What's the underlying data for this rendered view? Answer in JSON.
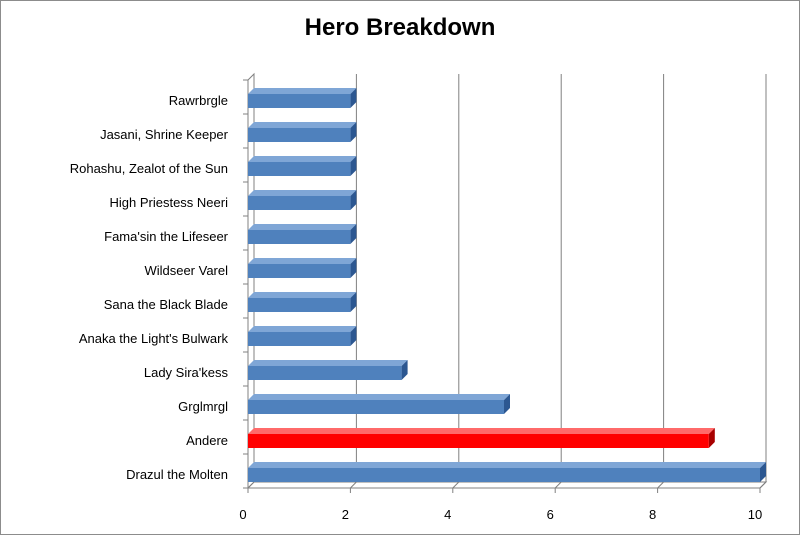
{
  "chart_data": {
    "type": "bar",
    "orientation": "horizontal",
    "title": "Hero Breakdown",
    "xlabel": "",
    "ylabel": "",
    "xlim": [
      0,
      10
    ],
    "xticks": [
      0,
      2,
      4,
      6,
      8,
      10
    ],
    "grid": "vertical",
    "legend": "none",
    "categories": [
      "Rawrbrgle",
      "Jasani, Shrine Keeper",
      "Rohashu, Zealot of the Sun",
      "High Priestess Neeri",
      "Fama'sin the Lifeseer",
      "Wildseer Varel",
      "Sana the Black Blade",
      "Anaka the Light's Bulwark",
      "Lady Sira'kess",
      "Grglmrgl",
      "Andere",
      "Drazul the Molten"
    ],
    "values": [
      2,
      2,
      2,
      2,
      2,
      2,
      2,
      2,
      3,
      5,
      9,
      10
    ],
    "highlight": "Andere",
    "colors": {
      "bar": "#4f81bd",
      "bar_dark": "#2c5791",
      "bar_light": "#7fa6d6",
      "highlight": "#ff0000",
      "highlight_dark": "#a80000",
      "highlight_light": "#ff6a6a",
      "grid": "#808080"
    }
  }
}
